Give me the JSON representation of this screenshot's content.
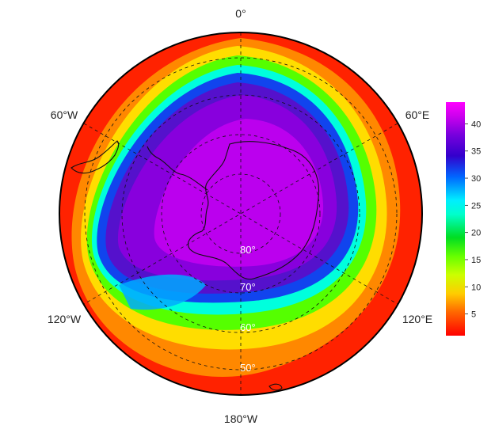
{
  "map": {
    "projection": "south-polar-stereographic",
    "longitude_labels": {
      "top": "0°",
      "right_upper": "60°E",
      "right_lower": "120°E",
      "bottom": "180°W",
      "left_lower": "120°W",
      "left_upper": "60°W"
    },
    "latitude_labels": [
      "80°",
      "70°",
      "60°",
      "50°"
    ],
    "gridlines": "dashed",
    "coastlines": true
  },
  "colorbar": {
    "ticks": [
      "40",
      "35",
      "30",
      "25",
      "20",
      "15",
      "10",
      "5"
    ],
    "range": [
      1,
      44
    ],
    "colors": [
      "#ff0000",
      "#ff6600",
      "#ffcc00",
      "#ccff00",
      "#66ff00",
      "#00dd22",
      "#00ffcc",
      "#00eeff",
      "#0066ff",
      "#3300cc",
      "#7700dd",
      "#cc00ee",
      "#ff00ff"
    ]
  }
}
